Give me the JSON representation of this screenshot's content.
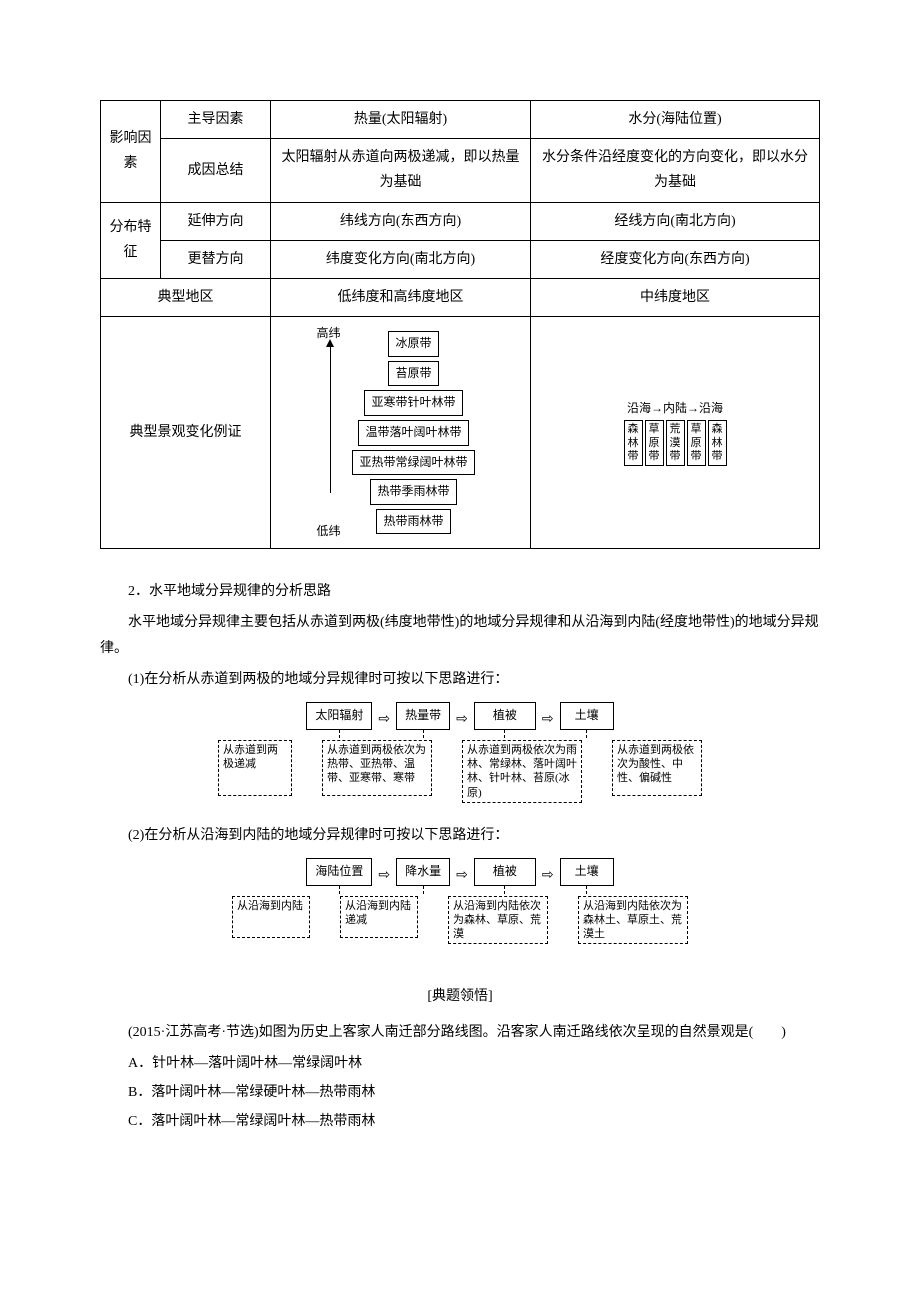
{
  "table": {
    "r1c1": "影响因素",
    "r1c2": "主导因素",
    "r1c3": "热量(太阳辐射)",
    "r1c4": "水分(海陆位置)",
    "r2c2": "成因总结",
    "r2c3": "太阳辐射从赤道向两极递减，即以热量为基础",
    "r2c4": "水分条件沿经度变化的方向变化，即以水分为基础",
    "r3c1": "分布特征",
    "r3c2": "延伸方向",
    "r3c3": "纬线方向(东西方向)",
    "r3c4": "经线方向(南北方向)",
    "r4c2": "更替方向",
    "r4c3": "纬度变化方向(南北方向)",
    "r4c4": "经度变化方向(东西方向)",
    "r5c1": "典型地区",
    "r5c3": "低纬度和高纬度地区",
    "r5c4": "中纬度地区",
    "r6c1": "典型景观变化例证",
    "zones": {
      "hi": "高纬",
      "lo": "低纬",
      "z1": "冰原带",
      "z2": "苔原带",
      "z3": "亚寒带针叶林带",
      "z4": "温带落叶阔叶林带",
      "z5": "亚热带常绿阔叶林带",
      "z6": "热带季雨林带",
      "z7": "热带雨林带"
    },
    "sealand": {
      "header": "沿海→内陆→沿海",
      "c1": "森林带",
      "c2": "草原带",
      "c3": "荒漠带",
      "c4": "草原带",
      "c5": "森林带"
    }
  },
  "body": {
    "h2": "2．水平地域分异规律的分析思路",
    "p1": "水平地域分异规律主要包括从赤道到两极(纬度地带性)的地域分异规律和从沿海到内陆(经度地带性)的地域分异规律。",
    "p2": "(1)在分析从赤道到两极的地域分异规律时可按以下思路进行：",
    "p3": "(2)在分析从沿海到内陆的地域分异规律时可按以下思路进行："
  },
  "flow1": {
    "b1": "太阳辐射",
    "b2": "热量带",
    "b3": "植被",
    "b4": "土壤",
    "d1": "从赤道到两极递减",
    "d2": "从赤道到两极依次为热带、亚热带、温带、亚寒带、寒带",
    "d3": "从赤道到两极依次为雨林、常绿林、落叶阔叶林、针叶林、苔原(冰原)",
    "d4": "从赤道到两极依次为酸性、中性、偏碱性"
  },
  "flow2": {
    "b1": "海陆位置",
    "b2": "降水量",
    "b3": "植被",
    "b4": "土壤",
    "d1": "从沿海到内陆",
    "d2": "从沿海到内陆递减",
    "d3": "从沿海到内陆依次为森林、草原、荒漠",
    "d4": "从沿海到内陆依次为森林土、草原土、荒漠土"
  },
  "exam": {
    "head": "[典题领悟]",
    "q": "(2015·江苏高考·节选)如图为历史上客家人南迁部分路线图。沿客家人南迁路线依次呈现的自然景观是(　　)",
    "a": "A．针叶林—落叶阔叶林—常绿阔叶林",
    "b": "B．落叶阔叶林—常绿硬叶林—热带雨林",
    "c": "C．落叶阔叶林—常绿阔叶林—热带雨林"
  }
}
